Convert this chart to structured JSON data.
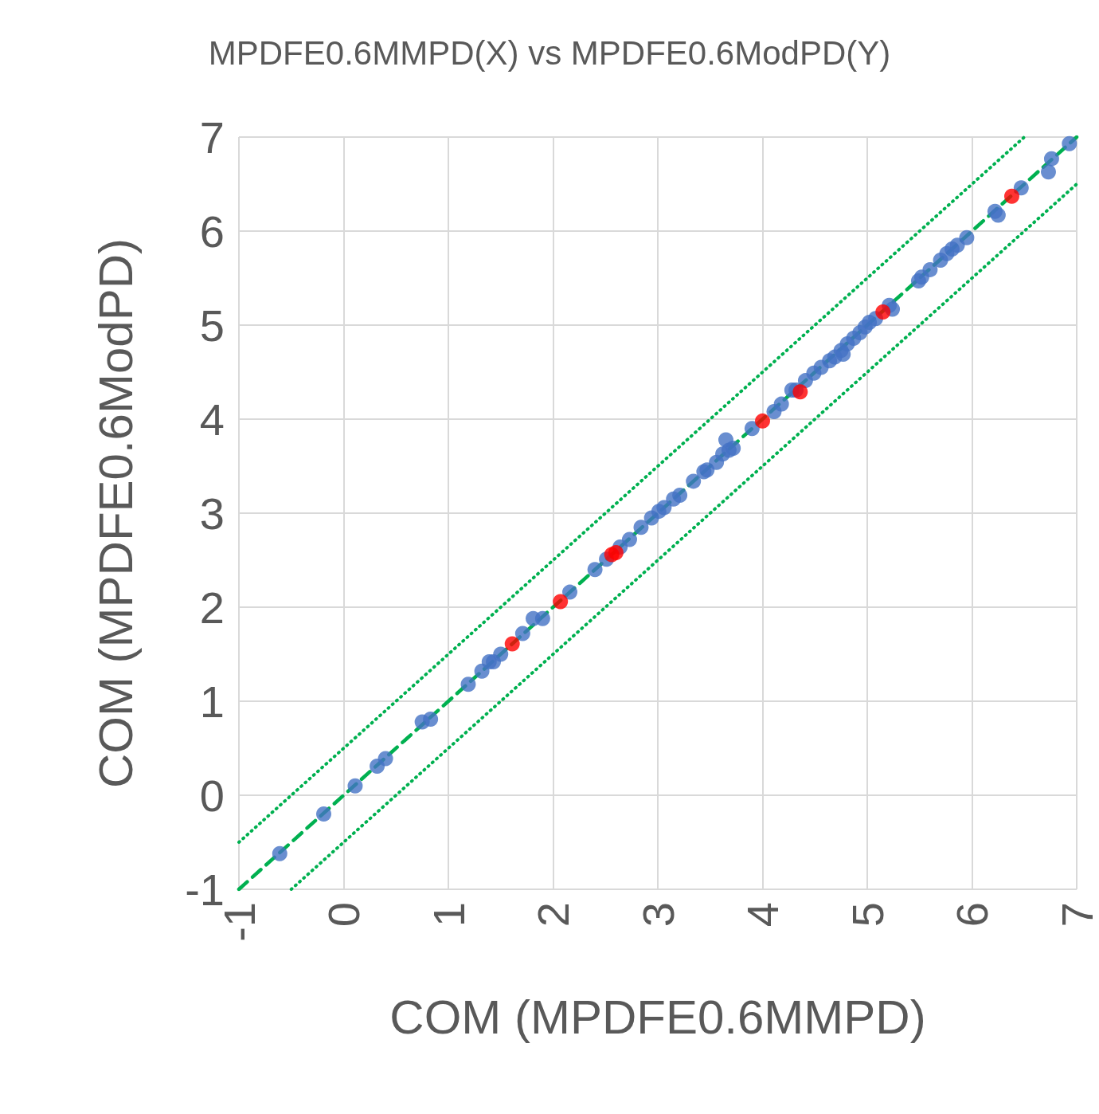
{
  "chart_data": {
    "type": "scatter",
    "title": "MPDFE0.6MMPD(X) vs MPDFE0.6ModPD(Y)",
    "xlabel": "COM (MPDFE0.6MMPD)",
    "ylabel": "COM (MPDFE0.6ModPD)",
    "xlim": [
      -1,
      7
    ],
    "ylim": [
      -1,
      7
    ],
    "xticks": [
      -1,
      0,
      1,
      2,
      3,
      4,
      5,
      6,
      7
    ],
    "yticks": [
      -1,
      0,
      1,
      2,
      3,
      4,
      5,
      6,
      7
    ],
    "grid": true,
    "marker": "circle",
    "series": [
      {
        "type": "line",
        "color": "#00b050",
        "line_style": "dashed",
        "marker": "none",
        "x": [
          -1,
          7
        ],
        "values": [
          -1,
          7
        ]
      },
      {
        "type": "line",
        "color": "#00b050",
        "line_style": "dotted",
        "marker": "none",
        "x": [
          -1,
          6.5
        ],
        "values": [
          -0.5,
          7
        ]
      },
      {
        "type": "line",
        "color": "#00b050",
        "line_style": "dotted",
        "marker": "none",
        "x": [
          -0.5,
          7
        ],
        "values": [
          -1,
          6.5
        ]
      },
      {
        "color": "#4472c4",
        "x": [
          -0.61,
          -0.19,
          0.11,
          0.32,
          0.4,
          0.75,
          0.83,
          1.19,
          1.32,
          1.39,
          1.43,
          1.5,
          1.71,
          1.81,
          1.9,
          2.16,
          2.4,
          2.51,
          2.64,
          2.73,
          2.84,
          2.94,
          3.01,
          3.06,
          3.15,
          3.21,
          3.34,
          3.44,
          3.47,
          3.56,
          3.62,
          3.65,
          3.68,
          3.72,
          3.9,
          4.11,
          4.18,
          4.28,
          4.32,
          4.41,
          4.49,
          4.56,
          4.64,
          4.69,
          4.75,
          4.77,
          4.81,
          4.87,
          4.93,
          4.98,
          5.02,
          5.08,
          5.21,
          5.24,
          5.49,
          5.52,
          5.6,
          5.7,
          5.76,
          5.81,
          5.86,
          5.95,
          6.22,
          6.25,
          6.47,
          6.73,
          6.76,
          6.93
        ],
        "values": [
          -0.62,
          -0.2,
          0.1,
          0.31,
          0.39,
          0.78,
          0.81,
          1.18,
          1.32,
          1.42,
          1.42,
          1.5,
          1.72,
          1.88,
          1.88,
          2.16,
          2.4,
          2.51,
          2.64,
          2.72,
          2.85,
          2.95,
          3.02,
          3.06,
          3.15,
          3.19,
          3.34,
          3.44,
          3.46,
          3.54,
          3.63,
          3.78,
          3.67,
          3.69,
          3.9,
          4.08,
          4.16,
          4.31,
          4.31,
          4.41,
          4.49,
          4.55,
          4.62,
          4.66,
          4.73,
          4.69,
          4.8,
          4.86,
          4.92,
          4.98,
          5.03,
          5.07,
          5.21,
          5.17,
          5.47,
          5.51,
          5.59,
          5.69,
          5.76,
          5.81,
          5.85,
          5.93,
          6.21,
          6.17,
          6.46,
          6.63,
          6.77,
          6.93
        ]
      },
      {
        "color": "#ff0000",
        "x": [
          1.61,
          2.07,
          2.56,
          2.6,
          4.0,
          4.36,
          5.15,
          6.38
        ],
        "values": [
          1.61,
          2.06,
          2.56,
          2.58,
          3.98,
          4.29,
          5.14,
          6.37
        ]
      }
    ]
  }
}
